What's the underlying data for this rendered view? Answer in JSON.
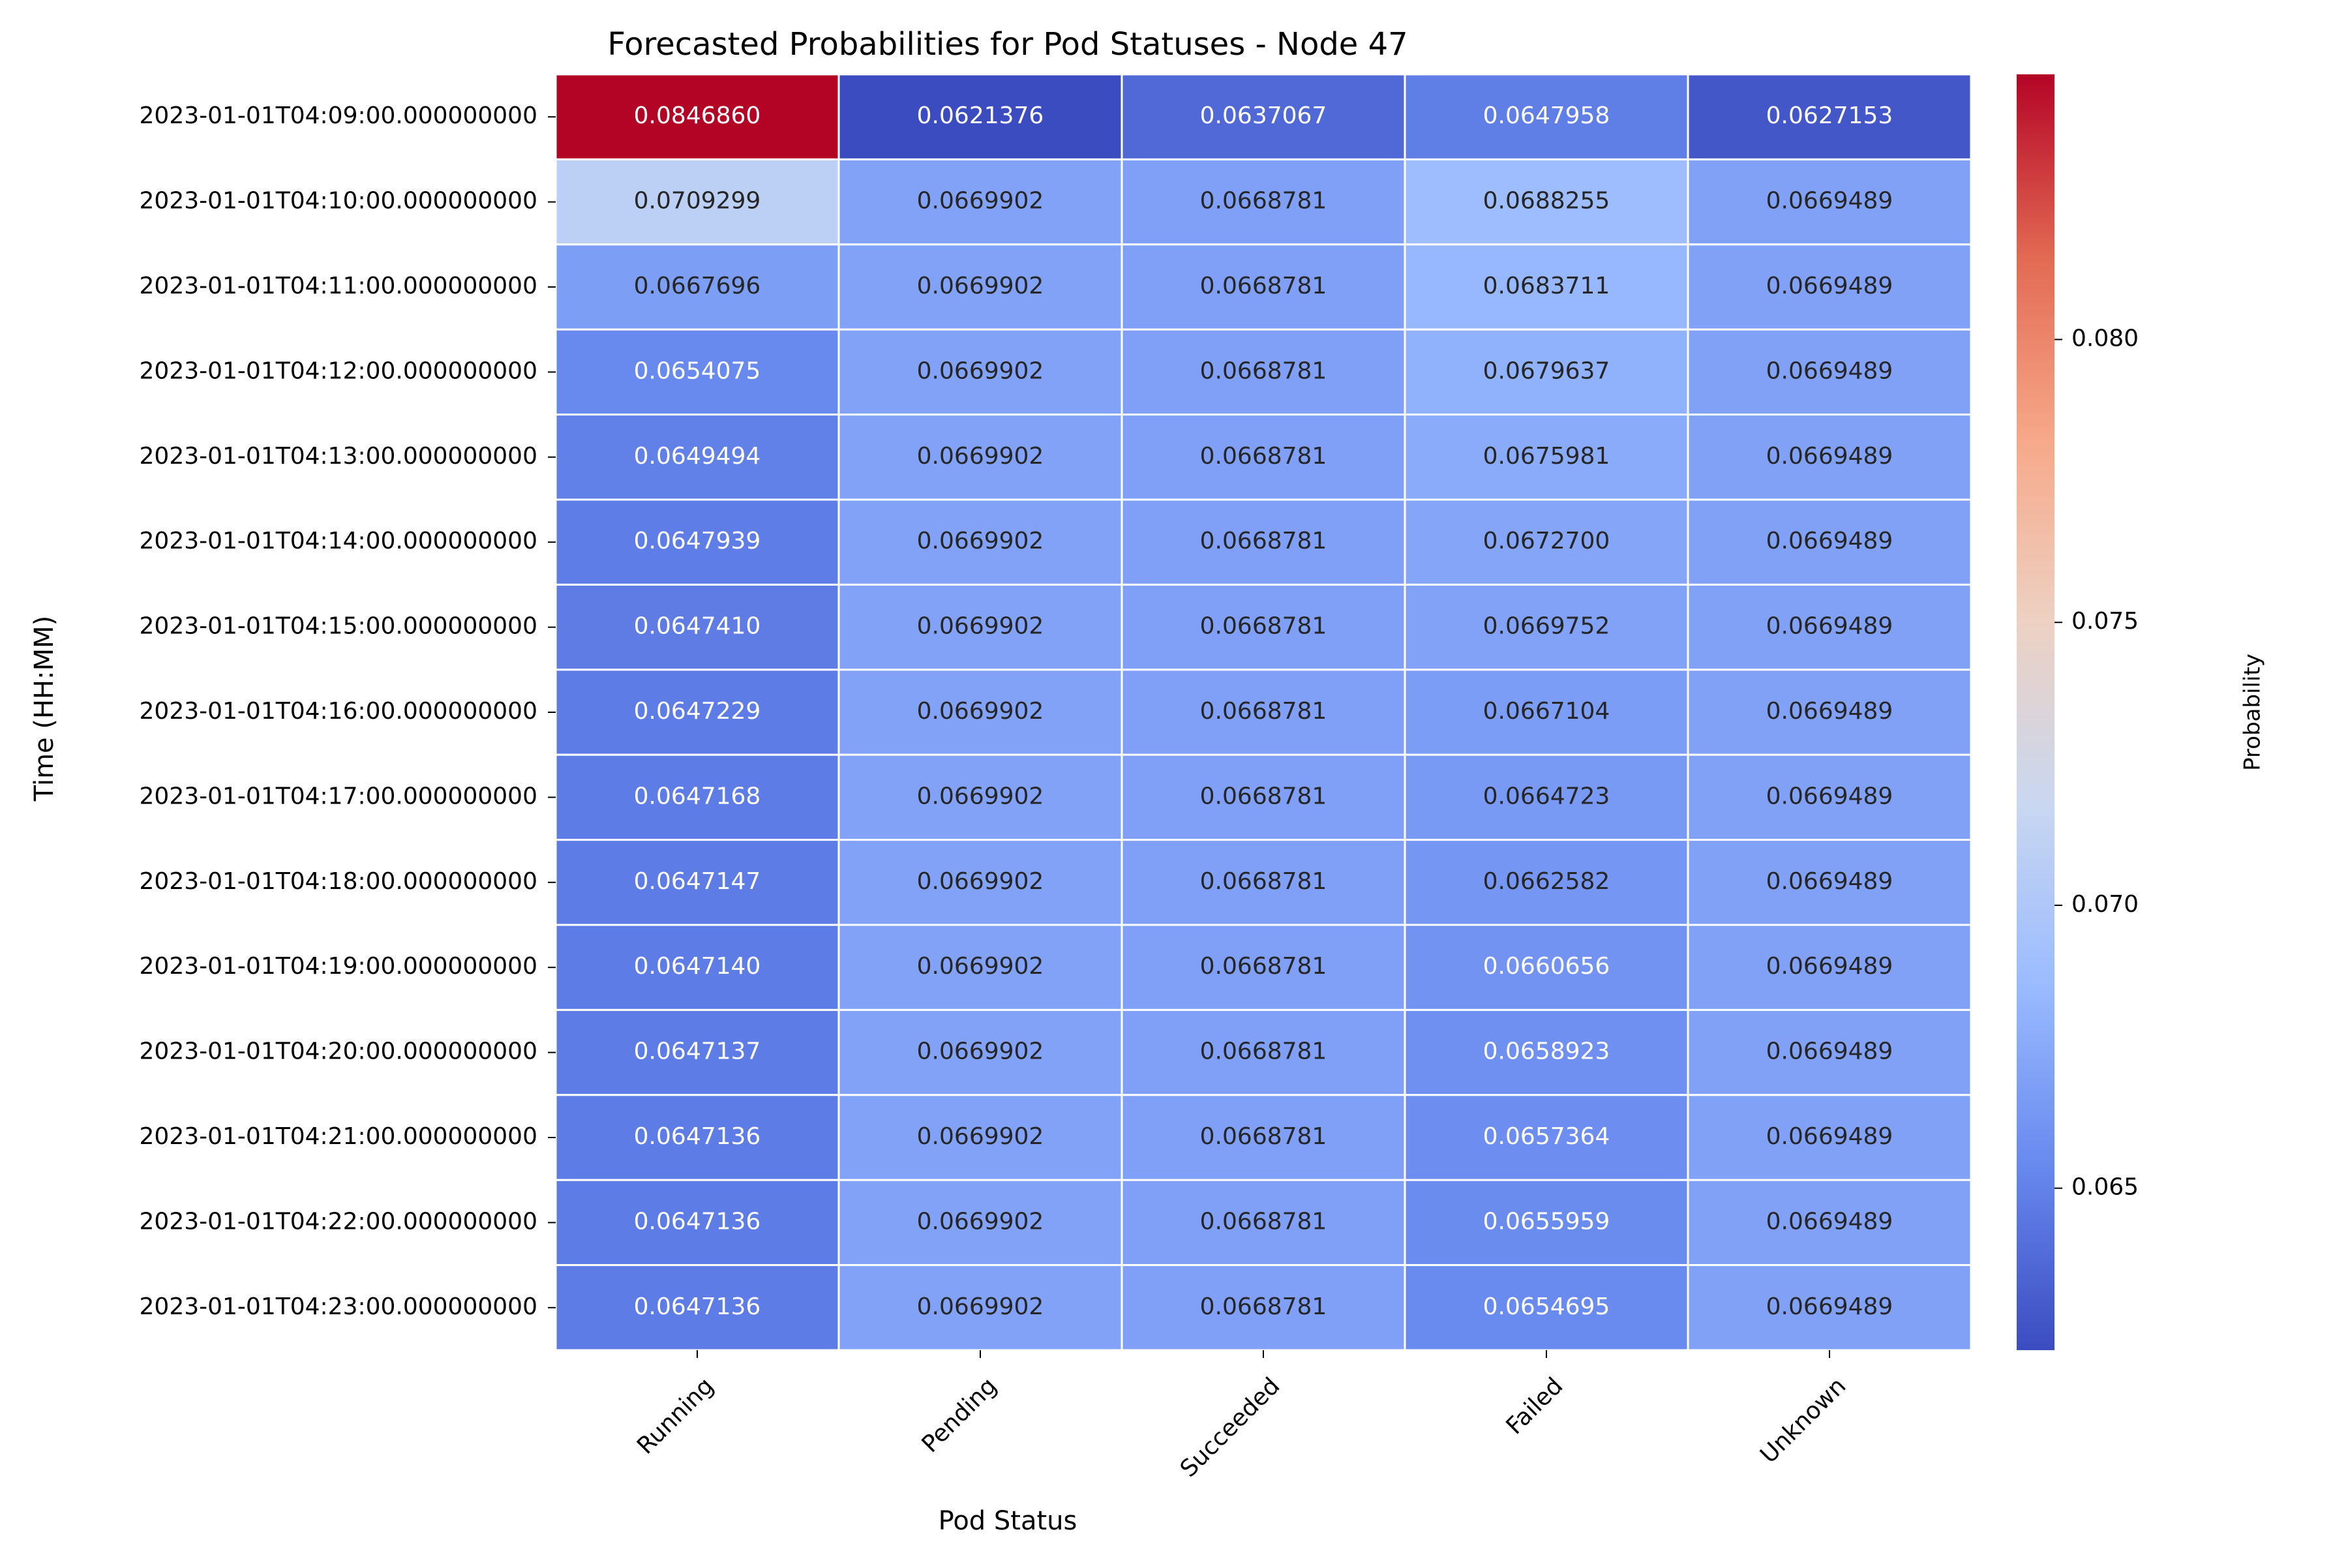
{
  "chart_data": {
    "type": "heatmap",
    "title": "Forecasted Probabilities for Pod Statuses - Node 47",
    "xlabel": "Pod Status",
    "ylabel": "Time (HH:MM)",
    "columns": [
      "Running",
      "Pending",
      "Succeeded",
      "Failed",
      "Unknown"
    ],
    "rows": [
      "2023-01-01T04:09:00.000000000",
      "2023-01-01T04:10:00.000000000",
      "2023-01-01T04:11:00.000000000",
      "2023-01-01T04:12:00.000000000",
      "2023-01-01T04:13:00.000000000",
      "2023-01-01T04:14:00.000000000",
      "2023-01-01T04:15:00.000000000",
      "2023-01-01T04:16:00.000000000",
      "2023-01-01T04:17:00.000000000",
      "2023-01-01T04:18:00.000000000",
      "2023-01-01T04:19:00.000000000",
      "2023-01-01T04:20:00.000000000",
      "2023-01-01T04:21:00.000000000",
      "2023-01-01T04:22:00.000000000",
      "2023-01-01T04:23:00.000000000"
    ],
    "values": [
      [
        "0.0846860",
        "0.0621376",
        "0.0637067",
        "0.0647958",
        "0.0627153"
      ],
      [
        "0.0709299",
        "0.0669902",
        "0.0668781",
        "0.0688255",
        "0.0669489"
      ],
      [
        "0.0667696",
        "0.0669902",
        "0.0668781",
        "0.0683711",
        "0.0669489"
      ],
      [
        "0.0654075",
        "0.0669902",
        "0.0668781",
        "0.0679637",
        "0.0669489"
      ],
      [
        "0.0649494",
        "0.0669902",
        "0.0668781",
        "0.0675981",
        "0.0669489"
      ],
      [
        "0.0647939",
        "0.0669902",
        "0.0668781",
        "0.0672700",
        "0.0669489"
      ],
      [
        "0.0647410",
        "0.0669902",
        "0.0668781",
        "0.0669752",
        "0.0669489"
      ],
      [
        "0.0647229",
        "0.0669902",
        "0.0668781",
        "0.0667104",
        "0.0669489"
      ],
      [
        "0.0647168",
        "0.0669902",
        "0.0668781",
        "0.0664723",
        "0.0669489"
      ],
      [
        "0.0647147",
        "0.0669902",
        "0.0668781",
        "0.0662582",
        "0.0669489"
      ],
      [
        "0.0647140",
        "0.0669902",
        "0.0668781",
        "0.0660656",
        "0.0669489"
      ],
      [
        "0.0647137",
        "0.0669902",
        "0.0668781",
        "0.0658923",
        "0.0669489"
      ],
      [
        "0.0647136",
        "0.0669902",
        "0.0668781",
        "0.0657364",
        "0.0669489"
      ],
      [
        "0.0647136",
        "0.0669902",
        "0.0668781",
        "0.0655959",
        "0.0669489"
      ],
      [
        "0.0647136",
        "0.0669902",
        "0.0668781",
        "0.0654695",
        "0.0669489"
      ]
    ],
    "colorbar": {
      "label": "Probability",
      "range": [
        0.0621376,
        0.084686
      ],
      "ticks": [
        "0.065",
        "0.070",
        "0.075",
        "0.080"
      ],
      "colormap": "coolwarm",
      "colors": [
        "#3b4cc0",
        "#6788ee",
        "#9abbff",
        "#c9d7f0",
        "#edd1c2",
        "#f7a889",
        "#e26952",
        "#b40426"
      ]
    },
    "grid": false,
    "cell_border_color": "#ffffff"
  }
}
